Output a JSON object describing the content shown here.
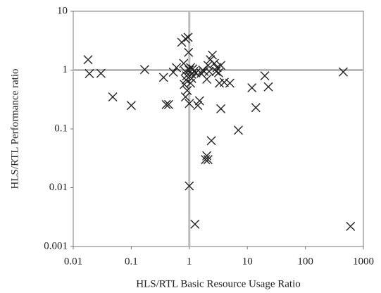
{
  "chart_data": {
    "type": "scatter",
    "xlabel": "HLS/RTL  Basic Resource Usage Ratio",
    "ylabel": "HLS/RTL  Performance  ratio",
    "xscale": "log",
    "yscale": "log",
    "xlim": [
      0.01,
      1000
    ],
    "ylim": [
      0.001,
      10
    ],
    "xticks": [
      0.01,
      0.1,
      1,
      10,
      100,
      1000
    ],
    "yticks": [
      0.001,
      0.01,
      0.1,
      1,
      10
    ],
    "vline": 1,
    "hline": 1,
    "color": "#222222",
    "x": [
      0.018,
      0.019,
      0.03,
      0.048,
      0.1,
      0.17,
      0.36,
      0.4,
      0.44,
      0.53,
      0.6,
      0.74,
      0.86,
      0.95,
      0.97,
      0.8,
      0.85,
      0.9,
      0.82,
      0.88,
      0.86,
      1.0,
      0.92,
      1.0,
      1.05,
      1.1,
      1.15,
      1.2,
      1.3,
      1.05,
      1.1,
      1.0,
      1.25,
      1.4,
      1.5,
      1.6,
      1.7,
      1.8,
      2.0,
      2.1,
      2.2,
      2.3,
      2.5,
      2.7,
      2.9,
      3.0,
      3.2,
      3.5,
      3.3,
      4.0,
      5.0,
      3.5,
      2.0,
      2.1,
      1.9,
      2.4,
      7,
      12,
      14,
      20,
      23,
      450,
      600
    ],
    "y": [
      1.5,
      0.87,
      0.88,
      0.35,
      0.25,
      1.02,
      0.75,
      0.26,
      0.26,
      0.92,
      1.1,
      2.97,
      3.4,
      3.6,
      2.0,
      1.3,
      0.95,
      0.8,
      0.57,
      0.68,
      0.35,
      0.27,
      0.45,
      1.0,
      1.1,
      0.85,
      1.05,
      0.95,
      0.9,
      0.6,
      0.72,
      0.0107,
      0.0024,
      0.25,
      0.3,
      0.88,
      1.0,
      0.95,
      0.7,
      1.2,
      0.95,
      1.5,
      1.8,
      1.3,
      0.95,
      1.1,
      0.9,
      1.2,
      0.6,
      0.62,
      0.6,
      0.22,
      0.035,
      0.03,
      0.03,
      0.063,
      0.095,
      0.5,
      0.23,
      0.8,
      0.52,
      0.93,
      0.0022
    ]
  }
}
